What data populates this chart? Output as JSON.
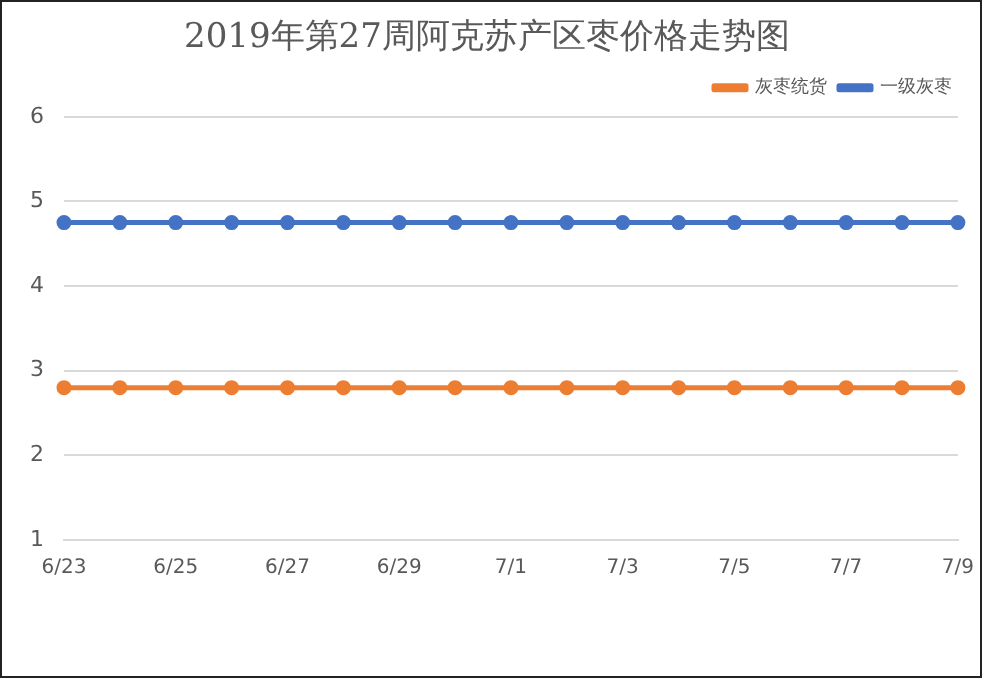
{
  "chart_data": {
    "type": "line",
    "title": "2019年第27周阿克苏产区枣价格走势图",
    "categories": [
      "6/23",
      null,
      "6/25",
      null,
      "6/27",
      null,
      "6/29",
      null,
      "7/1",
      null,
      "7/3",
      null,
      "7/5",
      null,
      "7/7",
      null,
      "7/9"
    ],
    "series": [
      {
        "name": "灰枣统货",
        "color": "#ed7d31",
        "values": [
          2.8,
          2.8,
          2.8,
          2.8,
          2.8,
          2.8,
          2.8,
          2.8,
          2.8,
          2.8,
          2.8,
          2.8,
          2.8,
          2.8,
          2.8,
          2.8,
          2.8
        ]
      },
      {
        "name": "一级灰枣",
        "color": "#4472c4",
        "values": [
          4.75,
          4.75,
          4.75,
          4.75,
          4.75,
          4.75,
          4.75,
          4.75,
          4.75,
          4.75,
          4.75,
          4.75,
          4.75,
          4.75,
          4.75,
          4.75,
          4.75
        ]
      }
    ],
    "ylim": [
      1,
      6
    ],
    "yticks": [
      1,
      2,
      3,
      4,
      5,
      6
    ],
    "grid": "y",
    "legend": "top right",
    "marker": "circle",
    "line_style": "solid"
  }
}
